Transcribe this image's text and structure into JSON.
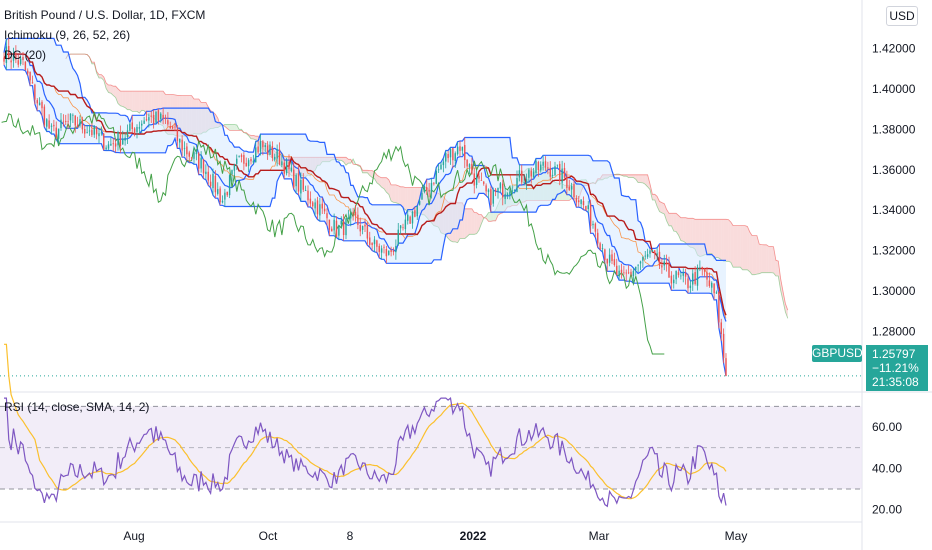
{
  "header": {
    "title": "British Pound / U.S. Dollar, 1D, FXCM",
    "indicator_ichimoku": "Ichimoku (9, 26, 52, 26)",
    "indicator_dc": "DC (20)",
    "currency_badge": "USD"
  },
  "rsi": {
    "label": "RSI (14, close, SMA, 14, 2)"
  },
  "price_tag": {
    "symbol": "GBPUSD",
    "price": "1.25797",
    "change": "−11.21%",
    "countdown": "21:35:08"
  },
  "colors": {
    "candle_up": "#26a69a",
    "candle_down": "#ef5350",
    "ichimoku_conversion": "#2962ff",
    "ichimoku_base": "#b71c1c",
    "ichimoku_lagging": "#43a047",
    "cloud_bull": "#a5d6a7",
    "cloud_bear": "#ef9a9a",
    "donchian": "#2962ff",
    "donchian_fill": "#d6e9ff",
    "rsi_line": "#7e57c2",
    "rsi_ma": "#fbc02d",
    "rsi_band": "#ede7f6"
  },
  "chart_data": [
    {
      "type": "candlestick",
      "series_name": "GBPUSD",
      "x_ticks": [
        "Aug",
        "Oct",
        "8",
        "2022",
        "Mar",
        "May"
      ],
      "y_ticks": [
        "1.42000",
        "1.40000",
        "1.38000",
        "1.36000",
        "1.34000",
        "1.32000",
        "1.30000",
        "1.28000"
      ],
      "y_range": [
        1.252,
        1.444
      ],
      "last_price": 1.25797,
      "grid": true
    },
    {
      "type": "line",
      "series_name": "RSI",
      "y_ticks": [
        "60.00",
        "40.00",
        "20.00"
      ],
      "y_range": [
        15,
        75
      ],
      "bands": [
        30,
        50,
        70
      ]
    }
  ]
}
